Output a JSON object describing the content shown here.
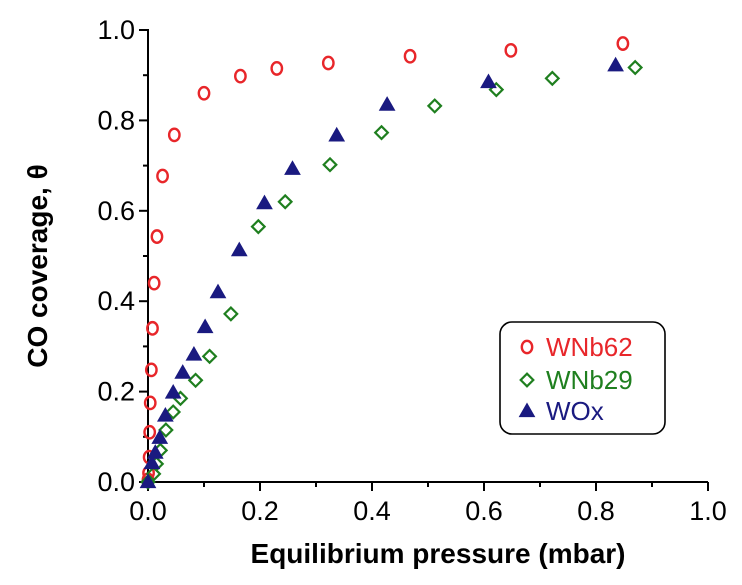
{
  "chart_data": {
    "type": "scatter",
    "title": "",
    "xlabel": "Equilibrium pressure (mbar)",
    "ylabel": "CO coverage, θ",
    "xlim": [
      0.0,
      1.0
    ],
    "ylim": [
      0.0,
      1.0
    ],
    "x_ticks": [
      "0.0",
      "0.2",
      "0.4",
      "0.6",
      "0.8",
      "1.0"
    ],
    "y_ticks": [
      "0.0",
      "0.2",
      "0.4",
      "0.6",
      "0.8",
      "1.0"
    ],
    "grid": false,
    "legend_position": "center-right",
    "series": [
      {
        "name": "WNb62",
        "marker": "circle-open",
        "color": "#e8262a",
        "points": [
          [
            0.0,
            0.005
          ],
          [
            0.001,
            0.02
          ],
          [
            0.002,
            0.055
          ],
          [
            0.003,
            0.11
          ],
          [
            0.004,
            0.175
          ],
          [
            0.006,
            0.248
          ],
          [
            0.008,
            0.34
          ],
          [
            0.011,
            0.44
          ],
          [
            0.016,
            0.543
          ],
          [
            0.026,
            0.677
          ],
          [
            0.047,
            0.768
          ],
          [
            0.1,
            0.86
          ],
          [
            0.165,
            0.898
          ],
          [
            0.23,
            0.915
          ],
          [
            0.322,
            0.927
          ],
          [
            0.468,
            0.942
          ],
          [
            0.648,
            0.955
          ],
          [
            0.848,
            0.97
          ]
        ]
      },
      {
        "name": "WNb29",
        "marker": "diamond-open",
        "color": "#1f7f1f",
        "points": [
          [
            0.0,
            0.0
          ],
          [
            0.01,
            0.018
          ],
          [
            0.015,
            0.04
          ],
          [
            0.022,
            0.07
          ],
          [
            0.032,
            0.115
          ],
          [
            0.045,
            0.155
          ],
          [
            0.058,
            0.185
          ],
          [
            0.085,
            0.225
          ],
          [
            0.11,
            0.278
          ],
          [
            0.148,
            0.372
          ],
          [
            0.197,
            0.565
          ],
          [
            0.245,
            0.62
          ],
          [
            0.325,
            0.702
          ],
          [
            0.417,
            0.773
          ],
          [
            0.512,
            0.832
          ],
          [
            0.622,
            0.868
          ],
          [
            0.722,
            0.893
          ],
          [
            0.87,
            0.917
          ]
        ]
      },
      {
        "name": "WOx",
        "marker": "triangle-filled",
        "color": "#1a1a80",
        "points": [
          [
            0.0,
            0.0
          ],
          [
            0.007,
            0.042
          ],
          [
            0.013,
            0.065
          ],
          [
            0.021,
            0.098
          ],
          [
            0.031,
            0.147
          ],
          [
            0.045,
            0.198
          ],
          [
            0.062,
            0.242
          ],
          [
            0.082,
            0.282
          ],
          [
            0.102,
            0.343
          ],
          [
            0.125,
            0.42
          ],
          [
            0.163,
            0.513
          ],
          [
            0.208,
            0.617
          ],
          [
            0.258,
            0.693
          ],
          [
            0.337,
            0.767
          ],
          [
            0.427,
            0.835
          ],
          [
            0.608,
            0.885
          ],
          [
            0.835,
            0.922
          ]
        ]
      }
    ]
  }
}
